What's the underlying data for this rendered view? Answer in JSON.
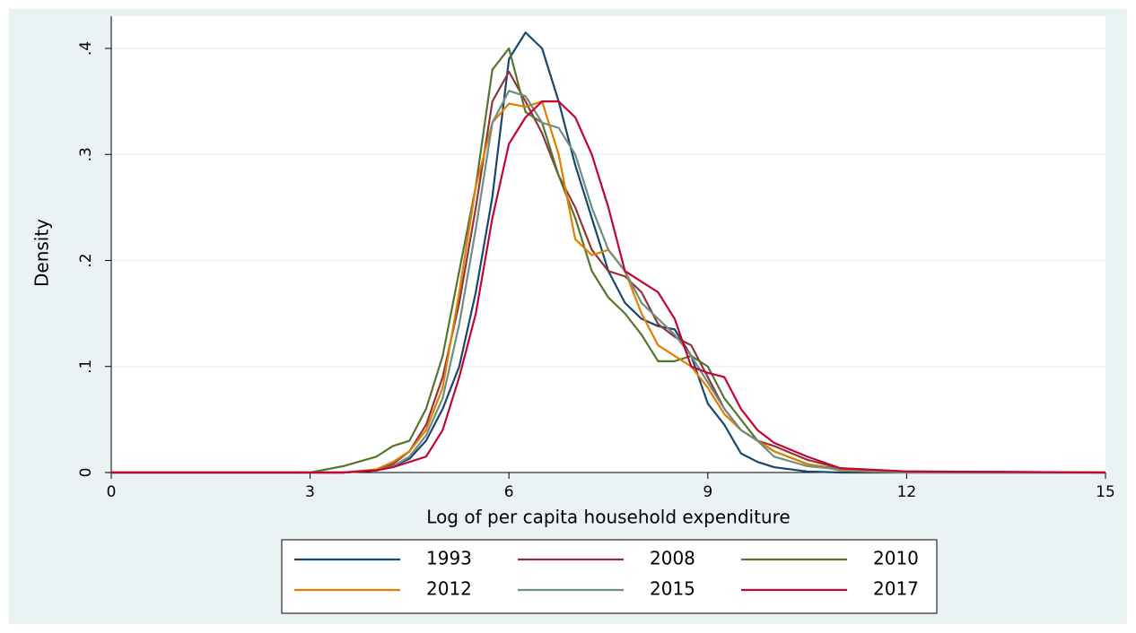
{
  "chart_data": {
    "type": "line",
    "x_label": "Log of per capita household expenditure",
    "y_label": "Density",
    "x": [
      0,
      3,
      3.5,
      4,
      4.25,
      4.5,
      4.75,
      5,
      5.25,
      5.5,
      5.75,
      6,
      6.25,
      6.5,
      6.75,
      7,
      7.25,
      7.5,
      7.75,
      8,
      8.25,
      8.5,
      8.75,
      9,
      9.25,
      9.5,
      9.75,
      10,
      10.5,
      11,
      12,
      15
    ],
    "series": [
      {
        "name": "1993",
        "color": "#1a476f",
        "values": [
          0,
          0,
          0,
          0.002,
          0.006,
          0.013,
          0.03,
          0.06,
          0.1,
          0.17,
          0.26,
          0.39,
          0.415,
          0.4,
          0.35,
          0.29,
          0.24,
          0.19,
          0.16,
          0.145,
          0.138,
          0.135,
          0.11,
          0.065,
          0.045,
          0.018,
          0.01,
          0.005,
          0.001,
          0,
          0,
          0
        ]
      },
      {
        "name": "2008",
        "color": "#90353b",
        "values": [
          0,
          0,
          0,
          0.002,
          0.008,
          0.02,
          0.045,
          0.09,
          0.16,
          0.25,
          0.35,
          0.378,
          0.35,
          0.32,
          0.28,
          0.25,
          0.21,
          0.19,
          0.185,
          0.17,
          0.14,
          0.128,
          0.12,
          0.09,
          0.06,
          0.04,
          0.03,
          0.025,
          0.012,
          0.004,
          0.001,
          0
        ]
      },
      {
        "name": "2010",
        "color": "#55752f",
        "values": [
          0,
          0,
          0.006,
          0.015,
          0.025,
          0.03,
          0.06,
          0.11,
          0.19,
          0.27,
          0.38,
          0.4,
          0.34,
          0.33,
          0.28,
          0.24,
          0.19,
          0.165,
          0.15,
          0.13,
          0.105,
          0.105,
          0.11,
          0.1,
          0.07,
          0.05,
          0.03,
          0.02,
          0.008,
          0.003,
          0,
          0
        ]
      },
      {
        "name": "2012",
        "color": "#e37e00",
        "values": [
          0,
          0,
          0,
          0.003,
          0.01,
          0.02,
          0.04,
          0.08,
          0.17,
          0.27,
          0.33,
          0.348,
          0.345,
          0.35,
          0.3,
          0.22,
          0.205,
          0.21,
          0.19,
          0.15,
          0.12,
          0.11,
          0.1,
          0.08,
          0.055,
          0.04,
          0.03,
          0.02,
          0.008,
          0.002,
          0,
          0
        ]
      },
      {
        "name": "2015",
        "color": "#6e8e84",
        "values": [
          0,
          0,
          0,
          0.002,
          0.006,
          0.015,
          0.035,
          0.07,
          0.14,
          0.23,
          0.33,
          0.36,
          0.355,
          0.33,
          0.325,
          0.3,
          0.25,
          0.21,
          0.19,
          0.16,
          0.145,
          0.13,
          0.11,
          0.085,
          0.06,
          0.04,
          0.03,
          0.015,
          0.006,
          0.003,
          0,
          0
        ]
      },
      {
        "name": "2017",
        "color": "#c10534",
        "values": [
          0,
          0,
          0,
          0.002,
          0.005,
          0.01,
          0.015,
          0.04,
          0.09,
          0.15,
          0.24,
          0.31,
          0.335,
          0.35,
          0.35,
          0.335,
          0.3,
          0.25,
          0.19,
          0.18,
          0.17,
          0.145,
          0.1,
          0.094,
          0.09,
          0.06,
          0.04,
          0.028,
          0.015,
          0.004,
          0.001,
          0
        ]
      }
    ],
    "xlim": [
      0,
      15
    ],
    "xticks": [
      0,
      3,
      6,
      9,
      12,
      15
    ],
    "ylim": [
      0,
      0.4
    ],
    "yticks": [
      0,
      {
        "value": 0.1,
        "label": ".1"
      },
      {
        "value": 0.2,
        "label": ".2"
      },
      {
        "value": 0.3,
        "label": ".3"
      },
      {
        "value": 0.4,
        "label": ".4"
      }
    ],
    "grid": true
  }
}
